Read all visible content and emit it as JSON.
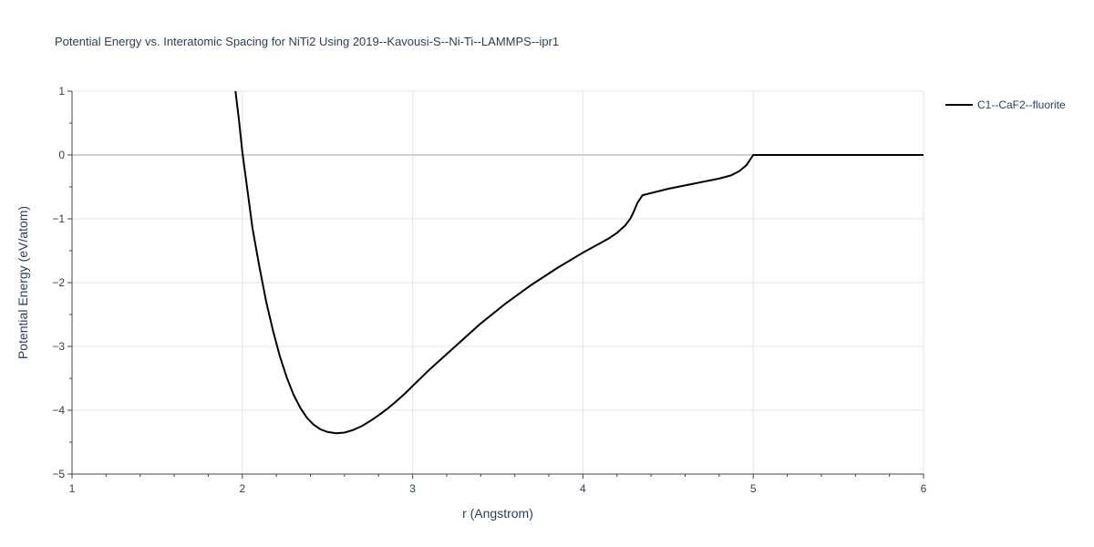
{
  "chart_data": {
    "type": "line",
    "title": "Potential Energy vs. Interatomic Spacing for NiTi2 Using 2019--Kavousi-S--Ni-Ti--LAMMPS--ipr1",
    "xlabel": "r (Angstrom)",
    "ylabel": "Potential Energy (eV/atom)",
    "xlim": [
      1,
      6
    ],
    "ylim": [
      -5,
      1
    ],
    "x_ticks": [
      1,
      2,
      3,
      4,
      5,
      6
    ],
    "y_ticks": [
      1,
      0,
      -1,
      -2,
      -3,
      -4,
      -5
    ],
    "x_tick_labels": [
      "1",
      "2",
      "3",
      "4",
      "5",
      "6"
    ],
    "y_tick_labels": [
      "1",
      "0",
      "−1",
      "−2",
      "−3",
      "−4",
      "−5"
    ],
    "grid": true,
    "legend_position": "top-right",
    "series": [
      {
        "name": "C1--CaF2--fluorite",
        "color": "#000000",
        "x": [
          1.96,
          1.98,
          2.0,
          2.03,
          2.06,
          2.1,
          2.14,
          2.18,
          2.22,
          2.26,
          2.3,
          2.34,
          2.38,
          2.42,
          2.46,
          2.5,
          2.55,
          2.6,
          2.65,
          2.7,
          2.75,
          2.8,
          2.85,
          2.9,
          2.95,
          3.0,
          3.1,
          3.2,
          3.3,
          3.4,
          3.55,
          3.7,
          3.85,
          4.0,
          4.15,
          4.2,
          4.25,
          4.28,
          4.3,
          4.32,
          4.35,
          4.5,
          4.65,
          4.8,
          4.87,
          4.92,
          4.96,
          4.98,
          5.0,
          5.2,
          5.5,
          5.8,
          6.0
        ],
        "y": [
          1.0,
          0.55,
          0.05,
          -0.55,
          -1.15,
          -1.75,
          -2.3,
          -2.75,
          -3.15,
          -3.48,
          -3.75,
          -3.96,
          -4.12,
          -4.23,
          -4.3,
          -4.34,
          -4.36,
          -4.35,
          -4.31,
          -4.25,
          -4.17,
          -4.08,
          -3.98,
          -3.87,
          -3.75,
          -3.62,
          -3.36,
          -3.12,
          -2.88,
          -2.64,
          -2.32,
          -2.03,
          -1.77,
          -1.53,
          -1.31,
          -1.22,
          -1.1,
          -0.99,
          -0.88,
          -0.75,
          -0.63,
          -0.53,
          -0.45,
          -0.37,
          -0.32,
          -0.25,
          -0.16,
          -0.08,
          0.0,
          0.0,
          0.0,
          0.0,
          0.0
        ]
      }
    ]
  }
}
